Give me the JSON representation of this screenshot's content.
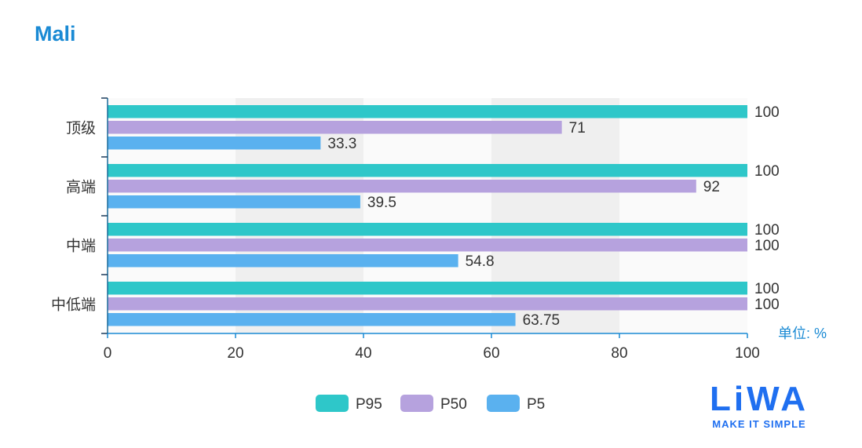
{
  "title": "Mali",
  "logo": {
    "text": "LiWA",
    "tagline": "MAKE IT SIMPLE"
  },
  "chart_data": {
    "type": "bar",
    "orientation": "horizontal",
    "categories": [
      "顶级",
      "高端",
      "中端",
      "中低端"
    ],
    "series": [
      {
        "name": "P95",
        "color": "#2ec7c9",
        "values": [
          100,
          100,
          100,
          100
        ]
      },
      {
        "name": "P50",
        "color": "#b6a2de",
        "values": [
          71,
          92,
          100,
          100
        ]
      },
      {
        "name": "P5",
        "color": "#5ab1ef",
        "values": [
          33.3,
          39.5,
          54.8,
          63.75
        ]
      }
    ],
    "xlim": [
      0,
      100
    ],
    "xticks": [
      0,
      20,
      40,
      60,
      80,
      100
    ],
    "unit_label": "单位: %",
    "split_area": true,
    "legend_position": "bottom"
  }
}
